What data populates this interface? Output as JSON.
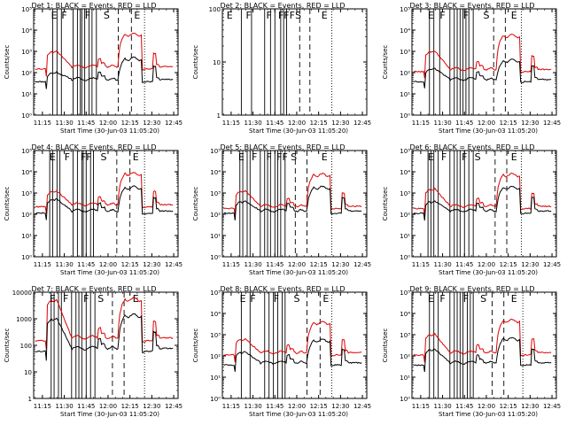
{
  "figure": {
    "xlabel": "Start Time (30-Jun-03 11:05:20)",
    "ylabel": "Counts/sec",
    "x_ticks": [
      "11:15",
      "11:30",
      "11:45",
      "12:00",
      "12:15",
      "12:30",
      "12:45"
    ],
    "x_tick_values": [
      10,
      25,
      40,
      55,
      70,
      85,
      100
    ],
    "x_range": [
      4,
      103
    ],
    "colors": {
      "events": "#000000",
      "lld": "#dd0000",
      "frame": "#000000"
    }
  },
  "chart_data": [
    {
      "type": "line",
      "title": "Det 1: BLACK = Events, RED = LLD",
      "xlabel": "Start Time (30-Jun-03 11:05:20)",
      "ylabel": "Counts/sec",
      "y_scale": "log",
      "ylim_exp": [
        0,
        5
      ],
      "y_tick_labels": [
        "10⁰",
        "10¹",
        "10²",
        "10³",
        "10⁴",
        "10⁵"
      ],
      "events_base": 50,
      "lld_base": 200,
      "pk1": [
        100,
        1000
      ],
      "pk2": [
        500,
        7000
      ],
      "solid_markers": [
        17,
        20,
        23,
        31,
        34,
        36,
        37,
        39,
        42,
        44,
        47
      ],
      "dashed_markers": [
        62,
        71
      ],
      "dotted_markers": [
        80
      ],
      "letters": [
        {
          "x": 18,
          "label": "E"
        },
        {
          "x": 25,
          "label": "F"
        },
        {
          "x": 41,
          "label": "F"
        },
        {
          "x": 54,
          "label": "S"
        },
        {
          "x": 75,
          "label": "E"
        }
      ],
      "has_data": true
    },
    {
      "type": "line",
      "title": "Det 2: BLACK = Events, RED = LLD",
      "xlabel": "Start Time (30-Jun-03 11:05:20)",
      "ylabel": "Counts/sec",
      "y_scale": "log",
      "ylim_exp": [
        0,
        2
      ],
      "y_tick_labels": [
        "1",
        "10",
        "100"
      ],
      "solid_markers": [
        17,
        24,
        33,
        37,
        40,
        44,
        46,
        48
      ],
      "dashed_markers": [
        57,
        64
      ],
      "dotted_markers": [
        79
      ],
      "letters": [
        {
          "x": 9,
          "label": "E"
        },
        {
          "x": 22,
          "label": "F"
        },
        {
          "x": 36,
          "label": "F"
        },
        {
          "x": 48,
          "label": "FFF"
        },
        {
          "x": 56,
          "label": "S"
        },
        {
          "x": 74,
          "label": "E"
        }
      ],
      "has_data": false
    },
    {
      "type": "line",
      "title": "Det 3: BLACK = Events, RED = LLD",
      "xlabel": "Start Time (30-Jun-03 11:05:20)",
      "ylabel": "Counts/sec",
      "y_scale": "log",
      "ylim_exp": [
        0,
        5
      ],
      "y_tick_labels": [
        "10⁰",
        "10¹",
        "10²",
        "10³",
        "10⁴",
        "10⁵"
      ],
      "events_base": 50,
      "lld_base": 150,
      "pk1": [
        150,
        1000
      ],
      "pk2": [
        400,
        6000
      ],
      "solid_markers": [
        16,
        19,
        23,
        30,
        33,
        35,
        37,
        39,
        41,
        43,
        46
      ],
      "dashed_markers": [
        60,
        68
      ],
      "dotted_markers": [
        79
      ],
      "letters": [
        {
          "x": 17,
          "label": "E"
        },
        {
          "x": 25,
          "label": "F"
        },
        {
          "x": 41,
          "label": "F"
        },
        {
          "x": 55,
          "label": "S"
        },
        {
          "x": 74,
          "label": "E"
        }
      ],
      "has_data": true
    },
    {
      "type": "line",
      "title": "Det 4: BLACK = Events, RED = LLD",
      "xlabel": "Start Time (30-Jun-03 11:05:20)",
      "ylabel": "Counts/sec",
      "y_scale": "log",
      "ylim_exp": [
        0,
        5
      ],
      "y_tick_labels": [
        "10⁰",
        "10¹",
        "10²",
        "10³",
        "10⁴",
        "10⁵"
      ],
      "events_base": 150,
      "lld_base": 300,
      "pk1": [
        500,
        1200
      ],
      "pk2": [
        2000,
        9000
      ],
      "solid_markers": [
        15,
        17,
        20,
        22,
        31,
        34,
        37,
        38,
        40,
        43,
        45
      ],
      "dashed_markers": [
        61,
        70
      ],
      "dotted_markers": [
        80
      ],
      "letters": [
        {
          "x": 17,
          "label": "E"
        },
        {
          "x": 27,
          "label": "F"
        },
        {
          "x": 40,
          "label": "FF"
        },
        {
          "x": 52,
          "label": "S"
        },
        {
          "x": 74,
          "label": "E"
        }
      ],
      "has_data": true
    },
    {
      "type": "line",
      "title": "Det 5: BLACK = Events, RED = LLD",
      "xlabel": "Start Time (30-Jun-03 11:05:20)",
      "ylabel": "Counts/sec",
      "y_scale": "log",
      "ylim_exp": [
        0,
        5
      ],
      "y_tick_labels": [
        "10⁰",
        "10¹",
        "10²",
        "10³",
        "10⁴",
        "10⁵"
      ],
      "events_base": 150,
      "lld_base": 250,
      "pk1": [
        400,
        1200
      ],
      "pk2": [
        2000,
        8000
      ],
      "solid_markers": [
        16,
        18,
        21,
        23,
        30,
        33,
        35,
        37,
        40,
        42,
        44,
        47
      ],
      "dashed_markers": [
        54,
        62
      ],
      "dotted_markers": [
        79
      ],
      "letters": [
        {
          "x": 17,
          "label": "E"
        },
        {
          "x": 26,
          "label": "F"
        },
        {
          "x": 36,
          "label": "F"
        },
        {
          "x": 45,
          "label": "FF"
        },
        {
          "x": 53,
          "label": "S"
        },
        {
          "x": 74,
          "label": "E"
        }
      ],
      "has_data": true
    },
    {
      "type": "line",
      "title": "Det 6: BLACK = Events, RED = LLD",
      "xlabel": "Start Time (30-Jun-03 11:05:20)",
      "ylabel": "Counts/sec",
      "y_scale": "log",
      "ylim_exp": [
        0,
        5
      ],
      "y_tick_labels": [
        "10⁰",
        "10¹",
        "10²",
        "10³",
        "10⁴",
        "10⁵"
      ],
      "events_base": 150,
      "lld_base": 250,
      "pk1": [
        400,
        1500
      ],
      "pk2": [
        2000,
        8000
      ],
      "solid_markers": [
        15,
        17,
        19,
        22,
        30,
        33,
        35,
        37,
        40,
        43,
        46
      ],
      "dashed_markers": [
        61,
        69
      ],
      "dotted_markers": [
        79
      ],
      "letters": [
        {
          "x": 17,
          "label": "E"
        },
        {
          "x": 26,
          "label": "F"
        },
        {
          "x": 40,
          "label": "F"
        },
        {
          "x": 49,
          "label": "S"
        },
        {
          "x": 74,
          "label": "E"
        }
      ],
      "has_data": true
    },
    {
      "type": "line",
      "title": "Det 7: BLACK = Events, RED = LLD",
      "xlabel": "Start Time (30-Jun-03 11:05:20)",
      "ylabel": "Counts/sec",
      "y_scale": "log",
      "ylim_exp": [
        0,
        4
      ],
      "y_tick_labels": [
        "1",
        "10",
        "100",
        "1000",
        "10000"
      ],
      "events_base": 80,
      "lld_base": 200,
      "pk1": [
        1000,
        5000
      ],
      "pk2": [
        1500,
        6000
      ],
      "solid_markers": [
        16,
        18,
        21,
        23,
        30,
        33,
        35,
        37,
        40,
        43,
        46
      ],
      "dashed_markers": [
        58,
        66
      ],
      "dotted_markers": [
        80
      ],
      "letters": [
        {
          "x": 17,
          "label": "E"
        },
        {
          "x": 26,
          "label": "F"
        },
        {
          "x": 40,
          "label": "F"
        },
        {
          "x": 50,
          "label": "S"
        },
        {
          "x": 74,
          "label": "E"
        }
      ],
      "has_data": true
    },
    {
      "type": "line",
      "title": "Det 8: BLACK = Events, RED = LLD",
      "xlabel": "Start Time (30-Jun-03 11:05:20)",
      "ylabel": "Counts/sec",
      "y_scale": "log",
      "ylim_exp": [
        0,
        5
      ],
      "y_tick_labels": [
        "10⁰",
        "10¹",
        "10²",
        "10³",
        "10⁴",
        "10⁵"
      ],
      "events_base": 50,
      "lld_base": 150,
      "pk1": [
        150,
        600
      ],
      "pk2": [
        600,
        4000
      ],
      "solid_markers": [
        17,
        23,
        33,
        36,
        39,
        42,
        45,
        47
      ],
      "dashed_markers": [
        62,
        71
      ],
      "dotted_markers": [
        79
      ],
      "letters": [
        {
          "x": 18,
          "label": "E"
        },
        {
          "x": 25,
          "label": "F"
        },
        {
          "x": 41,
          "label": "F"
        },
        {
          "x": 55,
          "label": "S"
        },
        {
          "x": 75,
          "label": "E"
        }
      ],
      "has_data": true
    },
    {
      "type": "line",
      "title": "Det 9: BLACK = Events, RED = LLD",
      "xlabel": "Start Time (30-Jun-03 11:05:20)",
      "ylabel": "Counts/sec",
      "y_scale": "log",
      "ylim_exp": [
        0,
        5
      ],
      "y_tick_labels": [
        "10⁰",
        "10¹",
        "10²",
        "10³",
        "10⁴",
        "10⁵"
      ],
      "events_base": 50,
      "lld_base": 150,
      "pk1": [
        200,
        1000
      ],
      "pk2": [
        700,
        5000
      ],
      "solid_markers": [
        16,
        19,
        22,
        30,
        33,
        35,
        37,
        39,
        42,
        44,
        46
      ],
      "dashed_markers": [
        59,
        67
      ],
      "dotted_markers": [
        80
      ],
      "letters": [
        {
          "x": 17,
          "label": "E"
        },
        {
          "x": 25,
          "label": "F"
        },
        {
          "x": 41,
          "label": "F"
        },
        {
          "x": 53,
          "label": "S"
        },
        {
          "x": 74,
          "label": "E"
        }
      ],
      "has_data": true
    }
  ]
}
